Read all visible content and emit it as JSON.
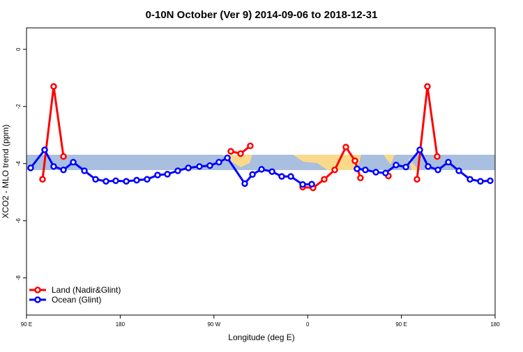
{
  "chart_data": {
    "type": "line",
    "title": "0-10N October (Ver 9)   2014-09-06 to 2018-12-31",
    "xlabel": "Longitude (deg E)",
    "ylabel": "XCO2 - MLO trend (ppm)",
    "xlim": [
      90,
      540
    ],
    "ylim": [
      -9.3,
      0.75
    ],
    "xticks": [
      {
        "value": 90,
        "label": "90 E"
      },
      {
        "value": 180,
        "label": "180"
      },
      {
        "value": 270,
        "label": "90 W"
      },
      {
        "value": 360,
        "label": "0"
      },
      {
        "value": 450,
        "label": "90 E"
      },
      {
        "value": 540,
        "label": "180"
      }
    ],
    "yticks": [
      0,
      -2,
      -4,
      -6,
      -8
    ],
    "legend": "bottom-left",
    "series": [
      {
        "name": "Land (Nadir&Glint)",
        "color": "#ff0000",
        "x": [
          105.4,
          116.1,
          125.5,
          200,
          286.2,
          295.6,
          304.9,
          330,
          355.2,
          365.2,
          375.9,
          386.0,
          396.7,
          405.4,
          410.7,
          420,
          437.5,
          450,
          465.0,
          475.0,
          484.4
        ],
        "values": [
          -4.55,
          -1.3,
          -3.75,
          null,
          -3.57,
          -3.65,
          -3.38,
          null,
          -4.82,
          -4.85,
          -4.55,
          -4.22,
          -3.42,
          -3.9,
          -4.5,
          null,
          -4.43,
          null,
          -4.55,
          -1.3,
          -3.75
        ]
      },
      {
        "name": "Ocean (Glint)",
        "color": "#0000ff",
        "x": [
          94.0,
          107.4,
          116.1,
          125.5,
          134.9,
          145.6,
          156.3,
          166.3,
          175.7,
          185.8,
          195.8,
          205.8,
          215.9,
          225.3,
          235.3,
          245.4,
          256.1,
          266.1,
          274.8,
          282.9,
          299.6,
          307.0,
          315.7,
          325.8,
          335.1,
          343.8,
          355.2,
          363.9,
          390,
          407.4,
          415.4,
          425.5,
          434.8,
          444.9,
          454.3,
          467.7,
          475.7,
          485.1,
          495.1,
          505.2,
          515.9,
          525.9,
          535.3
        ],
        "values": [
          -4.15,
          -3.52,
          -4.1,
          -4.22,
          -3.95,
          -4.25,
          -4.55,
          -4.62,
          -4.6,
          -4.62,
          -4.58,
          -4.55,
          -4.4,
          -4.37,
          -4.25,
          -4.15,
          -4.1,
          -4.07,
          -3.95,
          -3.8,
          -4.7,
          -4.38,
          -4.2,
          -4.28,
          -4.45,
          -4.45,
          -4.73,
          -4.72,
          null,
          -4.18,
          -4.22,
          -4.3,
          -4.33,
          -4.05,
          -4.12,
          -3.52,
          -4.1,
          -4.22,
          -3.95,
          -4.25,
          -4.55,
          -4.62,
          -4.6
        ]
      }
    ]
  }
}
